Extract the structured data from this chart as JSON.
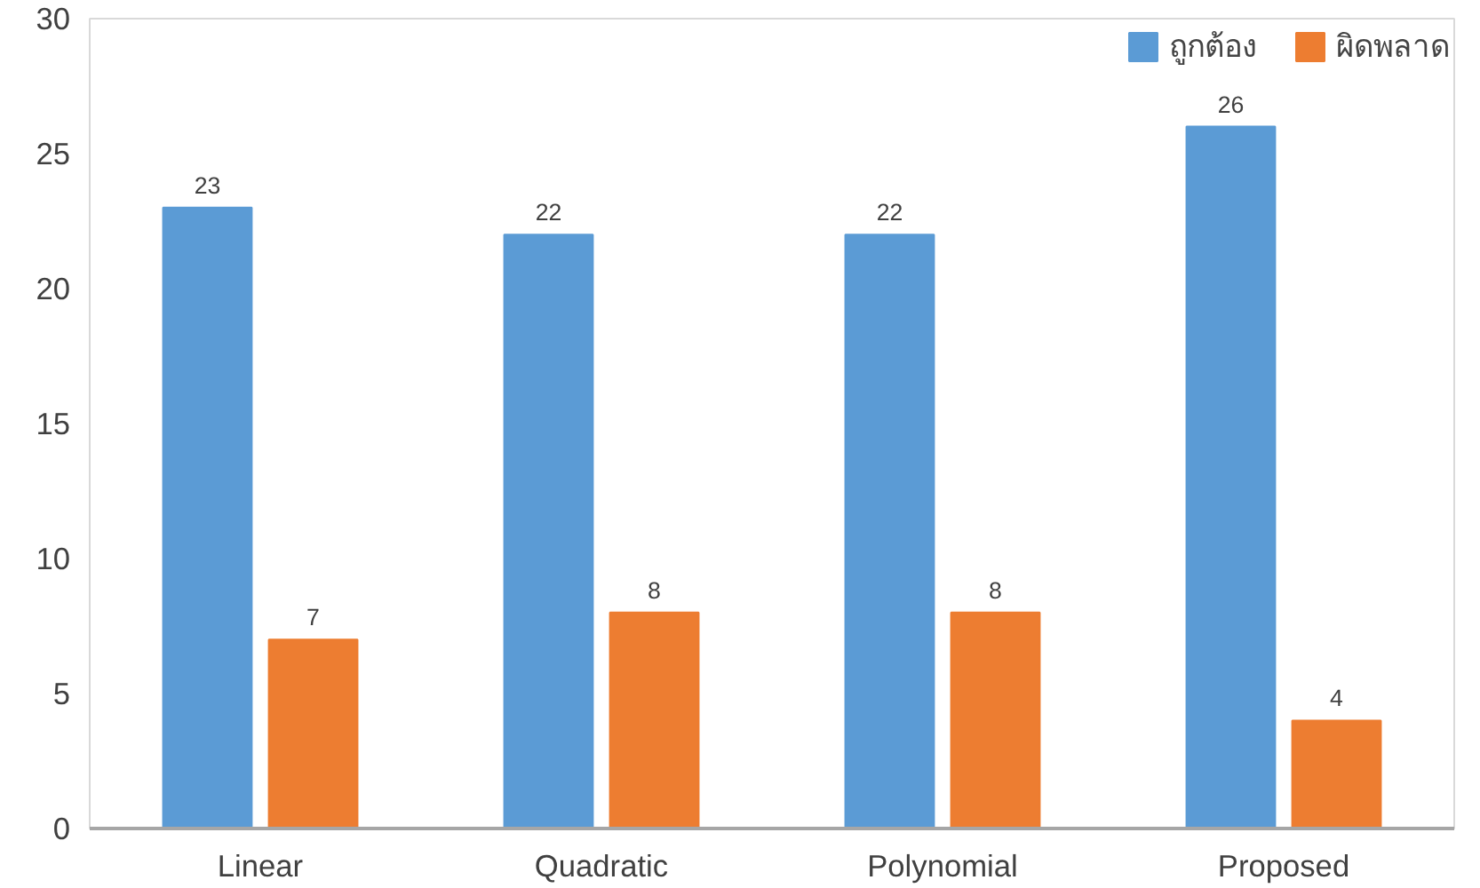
{
  "chart_data": {
    "type": "bar",
    "categories": [
      "Linear",
      "Quadratic",
      "Polynomial",
      "Proposed"
    ],
    "series": [
      {
        "name": "ถูกต้อง",
        "color": "#5b9bd5",
        "values": [
          23,
          22,
          22,
          26
        ]
      },
      {
        "name": "ผิดพลาด",
        "color": "#ed7d31",
        "values": [
          7,
          8,
          8,
          4
        ]
      }
    ],
    "ylim": [
      0,
      30
    ],
    "yticks": [
      0,
      5,
      10,
      15,
      20,
      25,
      30
    ],
    "grid": false,
    "legend": "top right",
    "data_labels": true
  }
}
